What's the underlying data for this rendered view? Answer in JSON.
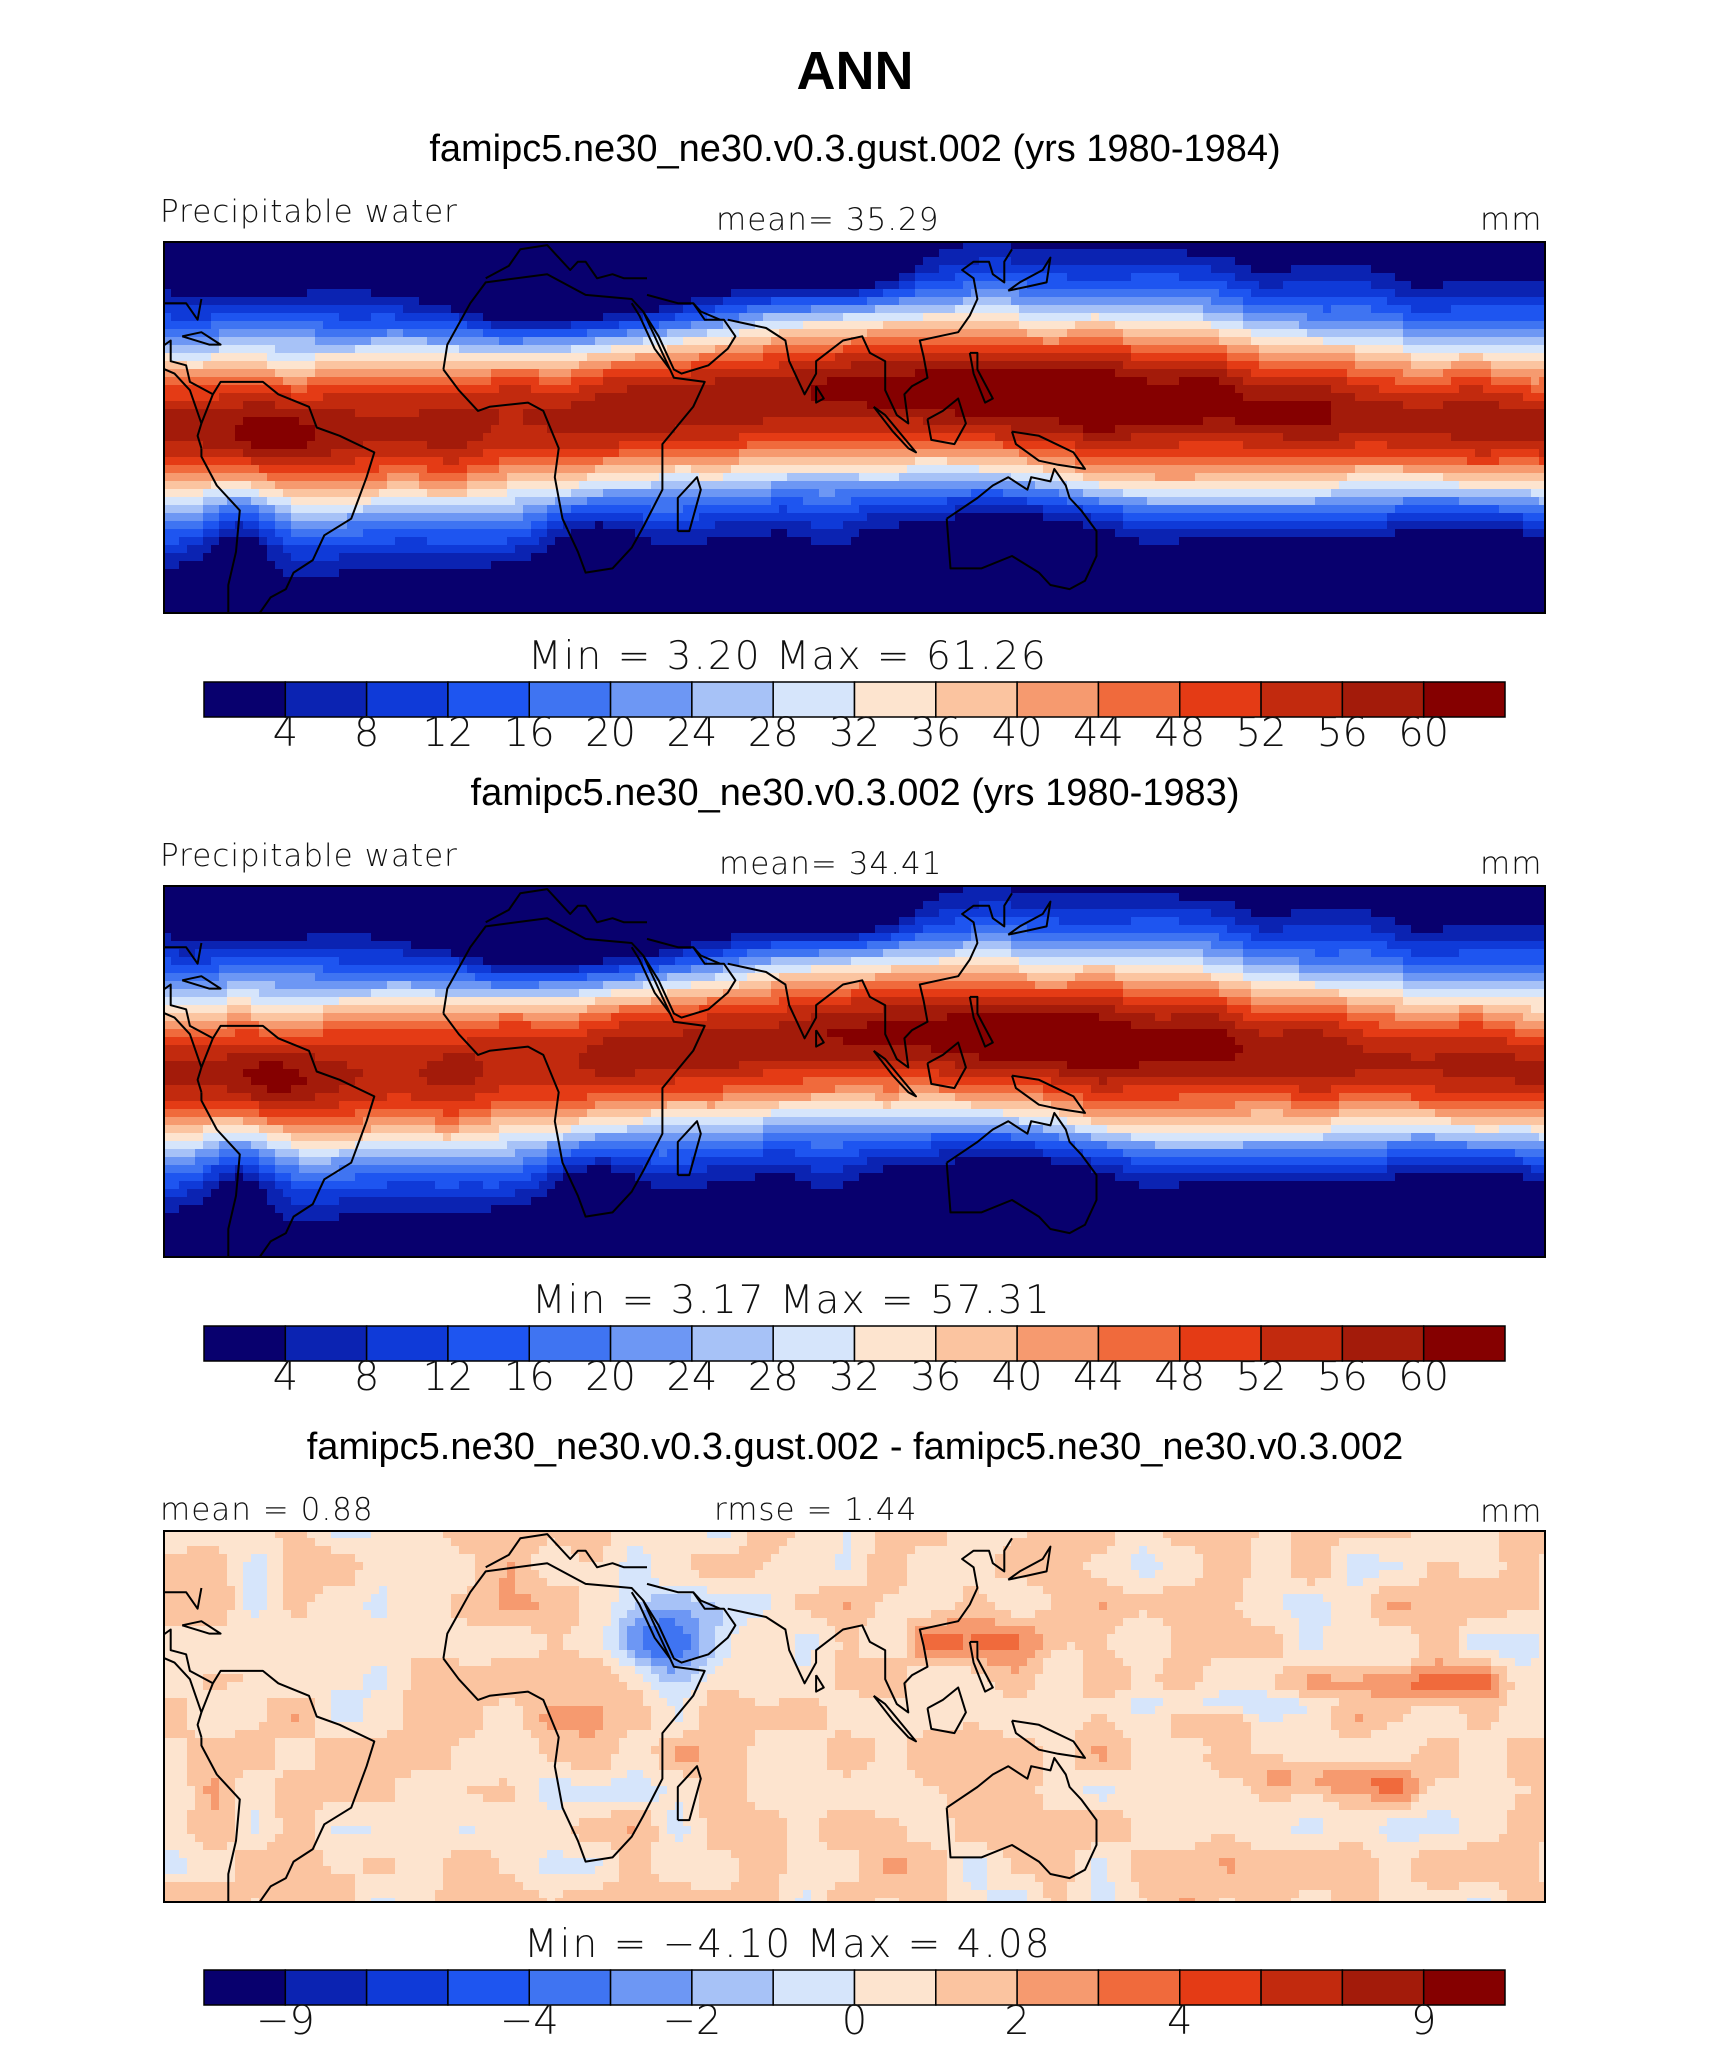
{
  "title": "ANN",
  "units": "mm",
  "variable": "Precipitable water",
  "colors": {
    "abs_scale": [
      "#08006e",
      "#0b23b2",
      "#0f3ad8",
      "#1e55f0",
      "#3f74f2",
      "#6d97f4",
      "#a7c2f7",
      "#d6e5fb",
      "#fde4cf",
      "#fbc4a0",
      "#f69a6f",
      "#f06a3c",
      "#e43b15",
      "#c22a0e",
      "#a31b0a",
      "#850000"
    ],
    "diff_scale": [
      "#08006e",
      "#0b23b2",
      "#0f3ad8",
      "#1e55f0",
      "#3f74f2",
      "#6d97f4",
      "#a7c2f7",
      "#d6e5fb",
      "#fde4cf",
      "#fbc4a0",
      "#f69a6f",
      "#f06a3c",
      "#e43b15",
      "#c22a0e",
      "#a31b0a",
      "#850000"
    ],
    "coastline": "#000000"
  },
  "panels": [
    {
      "case_title": "famipc5.ne30_ne30.v0.3.gust.002 (yrs 1980-1984)",
      "left_label": "Precipitable water",
      "center_label": "mean=   35.29",
      "right_label": "mm",
      "minmax": "Min  =     3.20  Max  =    61.26"
    },
    {
      "case_title": "famipc5.ne30_ne30.v0.3.002 (yrs 1980-1983)",
      "left_label": "Precipitable water",
      "center_label": "mean=   34.41",
      "right_label": "mm",
      "minmax": "Min  =     3.17  Max  =    57.31"
    },
    {
      "case_title": "famipc5.ne30_ne30.v0.3.gust.002 - famipc5.ne30_ne30.v0.3.002",
      "left_label": "mean =    0.88",
      "center_label": "rmse  =    1.44",
      "right_label": "mm",
      "minmax": "Min  =   −4.10  Max  =     4.08"
    }
  ],
  "chart_data": [
    {
      "type": "heatmap",
      "title": "famipc5.ne30_ne30.v0.3.gust.002 (yrs 1980-1984)",
      "variable": "Precipitable water",
      "units": "mm",
      "mean": 35.29,
      "min": 3.2,
      "max": 61.26,
      "lon_range": [
        -90,
        270
      ],
      "lat_range": [
        -45,
        45
      ],
      "colorbar_levels": [
        4,
        8,
        12,
        16,
        20,
        24,
        28,
        32,
        36,
        40,
        44,
        48,
        52,
        56,
        60
      ],
      "colorbar_tick_labels": [
        "4",
        "8",
        "12",
        "16",
        "20",
        "24",
        "28",
        "32",
        "36",
        "40",
        "44",
        "48",
        "52",
        "56",
        "60"
      ]
    },
    {
      "type": "heatmap",
      "title": "famipc5.ne30_ne30.v0.3.002 (yrs 1980-1983)",
      "variable": "Precipitable water",
      "units": "mm",
      "mean": 34.41,
      "min": 3.17,
      "max": 57.31,
      "lon_range": [
        -90,
        270
      ],
      "lat_range": [
        -45,
        45
      ],
      "colorbar_levels": [
        4,
        8,
        12,
        16,
        20,
        24,
        28,
        32,
        36,
        40,
        44,
        48,
        52,
        56,
        60
      ],
      "colorbar_tick_labels": [
        "4",
        "8",
        "12",
        "16",
        "20",
        "24",
        "28",
        "32",
        "36",
        "40",
        "44",
        "48",
        "52",
        "56",
        "60"
      ]
    },
    {
      "type": "heatmap",
      "title": "famipc5.ne30_ne30.v0.3.gust.002 - famipc5.ne30_ne30.v0.3.002",
      "units": "mm",
      "mean": 0.88,
      "rmse": 1.44,
      "min": -4.1,
      "max": 4.08,
      "lon_range": [
        -90,
        270
      ],
      "lat_range": [
        -45,
        45
      ],
      "colorbar_levels": [
        -9,
        -6,
        -5,
        -4,
        -3,
        -2,
        -1,
        0,
        1,
        2,
        3,
        4,
        5,
        6,
        9
      ],
      "colorbar_tick_labels": [
        "−9",
        "−4",
        "−2",
        "0",
        "2",
        "4",
        "9"
      ],
      "colorbar_tick_level_index": [
        0,
        3,
        5,
        7,
        9,
        11,
        14
      ]
    }
  ]
}
